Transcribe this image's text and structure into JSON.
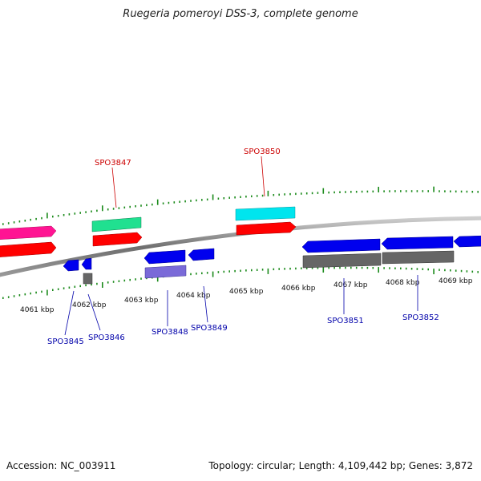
{
  "title": "Ruegeria pomeroyi DSS-3, complete genome",
  "footer": {
    "accession": "Accession: NC_003911",
    "summary": "Topology: circular; Length: 4,109,442 bp; Genes: 3,872"
  },
  "colors": {
    "backbone": "#8c8c8c",
    "tick": "#1a8a1a",
    "label_top": "#cc0000",
    "label_bottom": "#0000aa"
  },
  "scale": {
    "unit": "kbp",
    "ticks": [
      {
        "label": "4061 kbp"
      },
      {
        "label": "4062 kbp"
      },
      {
        "label": "4063 kbp"
      },
      {
        "label": "4064 kbp"
      },
      {
        "label": "4065 kbp"
      },
      {
        "label": "4066 kbp"
      },
      {
        "label": "4067 kbp"
      },
      {
        "label": "4068 kbp"
      },
      {
        "label": "4069 kbp"
      }
    ]
  },
  "genes": {
    "top": [
      {
        "id": "SPO3847",
        "color": "#cc0000"
      },
      {
        "id": "SPO3850",
        "color": "#cc0000"
      }
    ],
    "bottom": [
      {
        "id": "SPO3845",
        "color": "#0000aa"
      },
      {
        "id": "SPO3846",
        "color": "#0000aa"
      },
      {
        "id": "SPO3848",
        "color": "#0000aa"
      },
      {
        "id": "SPO3849",
        "color": "#0000aa"
      },
      {
        "id": "SPO3851",
        "color": "#0000aa"
      },
      {
        "id": "SPO3852",
        "color": "#0000aa"
      }
    ]
  },
  "feature_colors": {
    "cds_strand_plus": "#ff0000",
    "gene_plus_a": "#ff1493",
    "gene_plus_b": "#20e090",
    "gene_plus_c": "#00e5ee",
    "cds_strand_minus": "#0000ee",
    "gene_minus_grey": "#666666",
    "gene_minus_purple": "#7a6ad8"
  }
}
